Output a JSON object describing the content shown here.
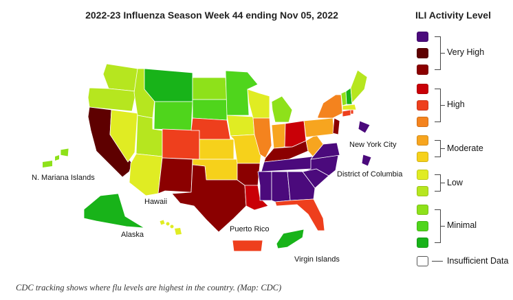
{
  "map": {
    "title": "2022-23 Influenza Season Week 44 ending Nov 05, 2022",
    "territory_labels": {
      "new_york_city": "New York City",
      "district_of_columbia": "District of Columbia",
      "n_mariana_islands": "N. Mariana Islands",
      "hawaii": "Hawaii",
      "alaska": "Alaska",
      "puerto_rico": "Puerto Rico",
      "virgin_islands": "Virgin Islands"
    },
    "region_levels": {
      "WA": 4,
      "OR": 4,
      "CA": 12,
      "NV": 5,
      "ID": 4,
      "MT": 1,
      "WY": 2,
      "UT": 4,
      "AZ": 5,
      "CO": 9,
      "NM": 11,
      "ND": 3,
      "SD": 2,
      "NE": 9,
      "KS": 6,
      "OK": 6,
      "TX": 11,
      "MN": 2,
      "IA": 5,
      "MO": 6,
      "AR": 11,
      "LA": 10,
      "WI": 5,
      "IL": 8,
      "MI": 3,
      "IN": 7,
      "OH": 10,
      "KY": 11,
      "TN": 13,
      "MS": 13,
      "AL": 13,
      "GA": 13,
      "FL": 9,
      "SC": 13,
      "NC": 13,
      "VA": 13,
      "WV": 7,
      "PA": 7,
      "NY": 8,
      "VT": 3,
      "NH": 1,
      "ME": 4,
      "MA": 5,
      "CT": 9,
      "NJ": 11,
      "RI": 9,
      "NYC": 13,
      "DC": 13,
      "HI": 5,
      "AK": 1,
      "PR": 9,
      "VI": 1,
      "MP": 3
    }
  },
  "legend": {
    "title": "ILI Activity Level",
    "levels": [
      {
        "level": 13,
        "color": "#4b0a7c"
      },
      {
        "level": 12,
        "color": "#5e0000"
      },
      {
        "level": 11,
        "color": "#8b0000"
      },
      {
        "level": 10,
        "color": "#c90007"
      },
      {
        "level": 9,
        "color": "#ee3f1d"
      },
      {
        "level": 8,
        "color": "#f4831e"
      },
      {
        "level": 7,
        "color": "#f7a51f"
      },
      {
        "level": 6,
        "color": "#f6d11b"
      },
      {
        "level": 5,
        "color": "#e0ec23"
      },
      {
        "level": 4,
        "color": "#b6e61f"
      },
      {
        "level": 3,
        "color": "#8ee11a"
      },
      {
        "level": 2,
        "color": "#4fd51c"
      },
      {
        "level": 1,
        "color": "#18b319"
      }
    ],
    "groups": {
      "very_high": "Very High",
      "high": "High",
      "moderate": "Moderate",
      "low": "Low",
      "minimal": "Minimal"
    },
    "insufficient": {
      "label": "Insufficient Data",
      "color": "#ffffff"
    }
  },
  "caption": "CDC tracking shows where flu levels are highest in the country. (Map: CDC)"
}
